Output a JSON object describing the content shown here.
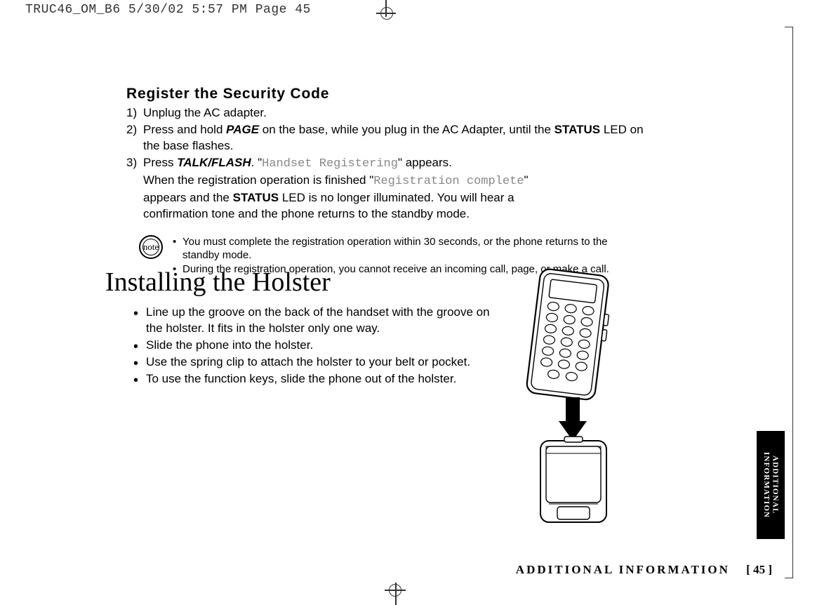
{
  "doc_slug": "TRUC46_OM_B6  5/30/02  5:57 PM  Page 45",
  "section_title": "Register the Security Code",
  "steps": [
    {
      "num": "1)",
      "parts": [
        {
          "t": "plain",
          "v": "Unplug the AC adapter."
        }
      ]
    },
    {
      "num": "2)",
      "parts": [
        {
          "t": "plain",
          "v": "Press and hold "
        },
        {
          "t": "bi",
          "v": "PAGE"
        },
        {
          "t": "plain",
          "v": " on the base, while you plug in the AC Adapter, until the "
        },
        {
          "t": "b",
          "v": "STATUS"
        },
        {
          "t": "plain",
          "v": " LED on the base flashes."
        }
      ]
    },
    {
      "num": "3)",
      "parts": [
        {
          "t": "plain",
          "v": "Press "
        },
        {
          "t": "bi",
          "v": "TALK/FLASH"
        },
        {
          "t": "plain",
          "v": ". \""
        },
        {
          "t": "lcd",
          "v": "Handset Registering"
        },
        {
          "t": "plain",
          "v": "\" appears."
        },
        {
          "t": "br"
        },
        {
          "t": "plain",
          "v": "When the registration operation is finished \""
        },
        {
          "t": "lcd",
          "v": "Registration complete"
        },
        {
          "t": "plain",
          "v": "\""
        },
        {
          "t": "br"
        },
        {
          "t": "plain",
          "v": "appears and the "
        },
        {
          "t": "b",
          "v": "STATUS"
        },
        {
          "t": "plain",
          "v": " LED is no longer illuminated. You will hear a"
        },
        {
          "t": "br"
        },
        {
          "t": "plain",
          "v": "confirmation tone and the phone returns to the standby mode."
        }
      ]
    }
  ],
  "note_label": "note",
  "notes": [
    "You must complete the registration operation within 30 seconds, or the phone returns to the standby mode.",
    "During the registration operation, you cannot receive an incoming call, page, or make a call."
  ],
  "main_heading": "Installing the Holster",
  "bullets": [
    "Line up the groove on the back of the handset with the groove on the holster. It fits in the holster only one way.",
    "Slide the phone into the holster.",
    "Use the spring clip to attach the holster to your belt or pocket.",
    "To use the function keys, slide the phone out of the holster."
  ],
  "footer_section": "ADDITIONAL INFORMATION",
  "page_number": "[ 45 ]",
  "side_tab_line1": "ADDITIONAL",
  "side_tab_line2": "INFORMATION"
}
